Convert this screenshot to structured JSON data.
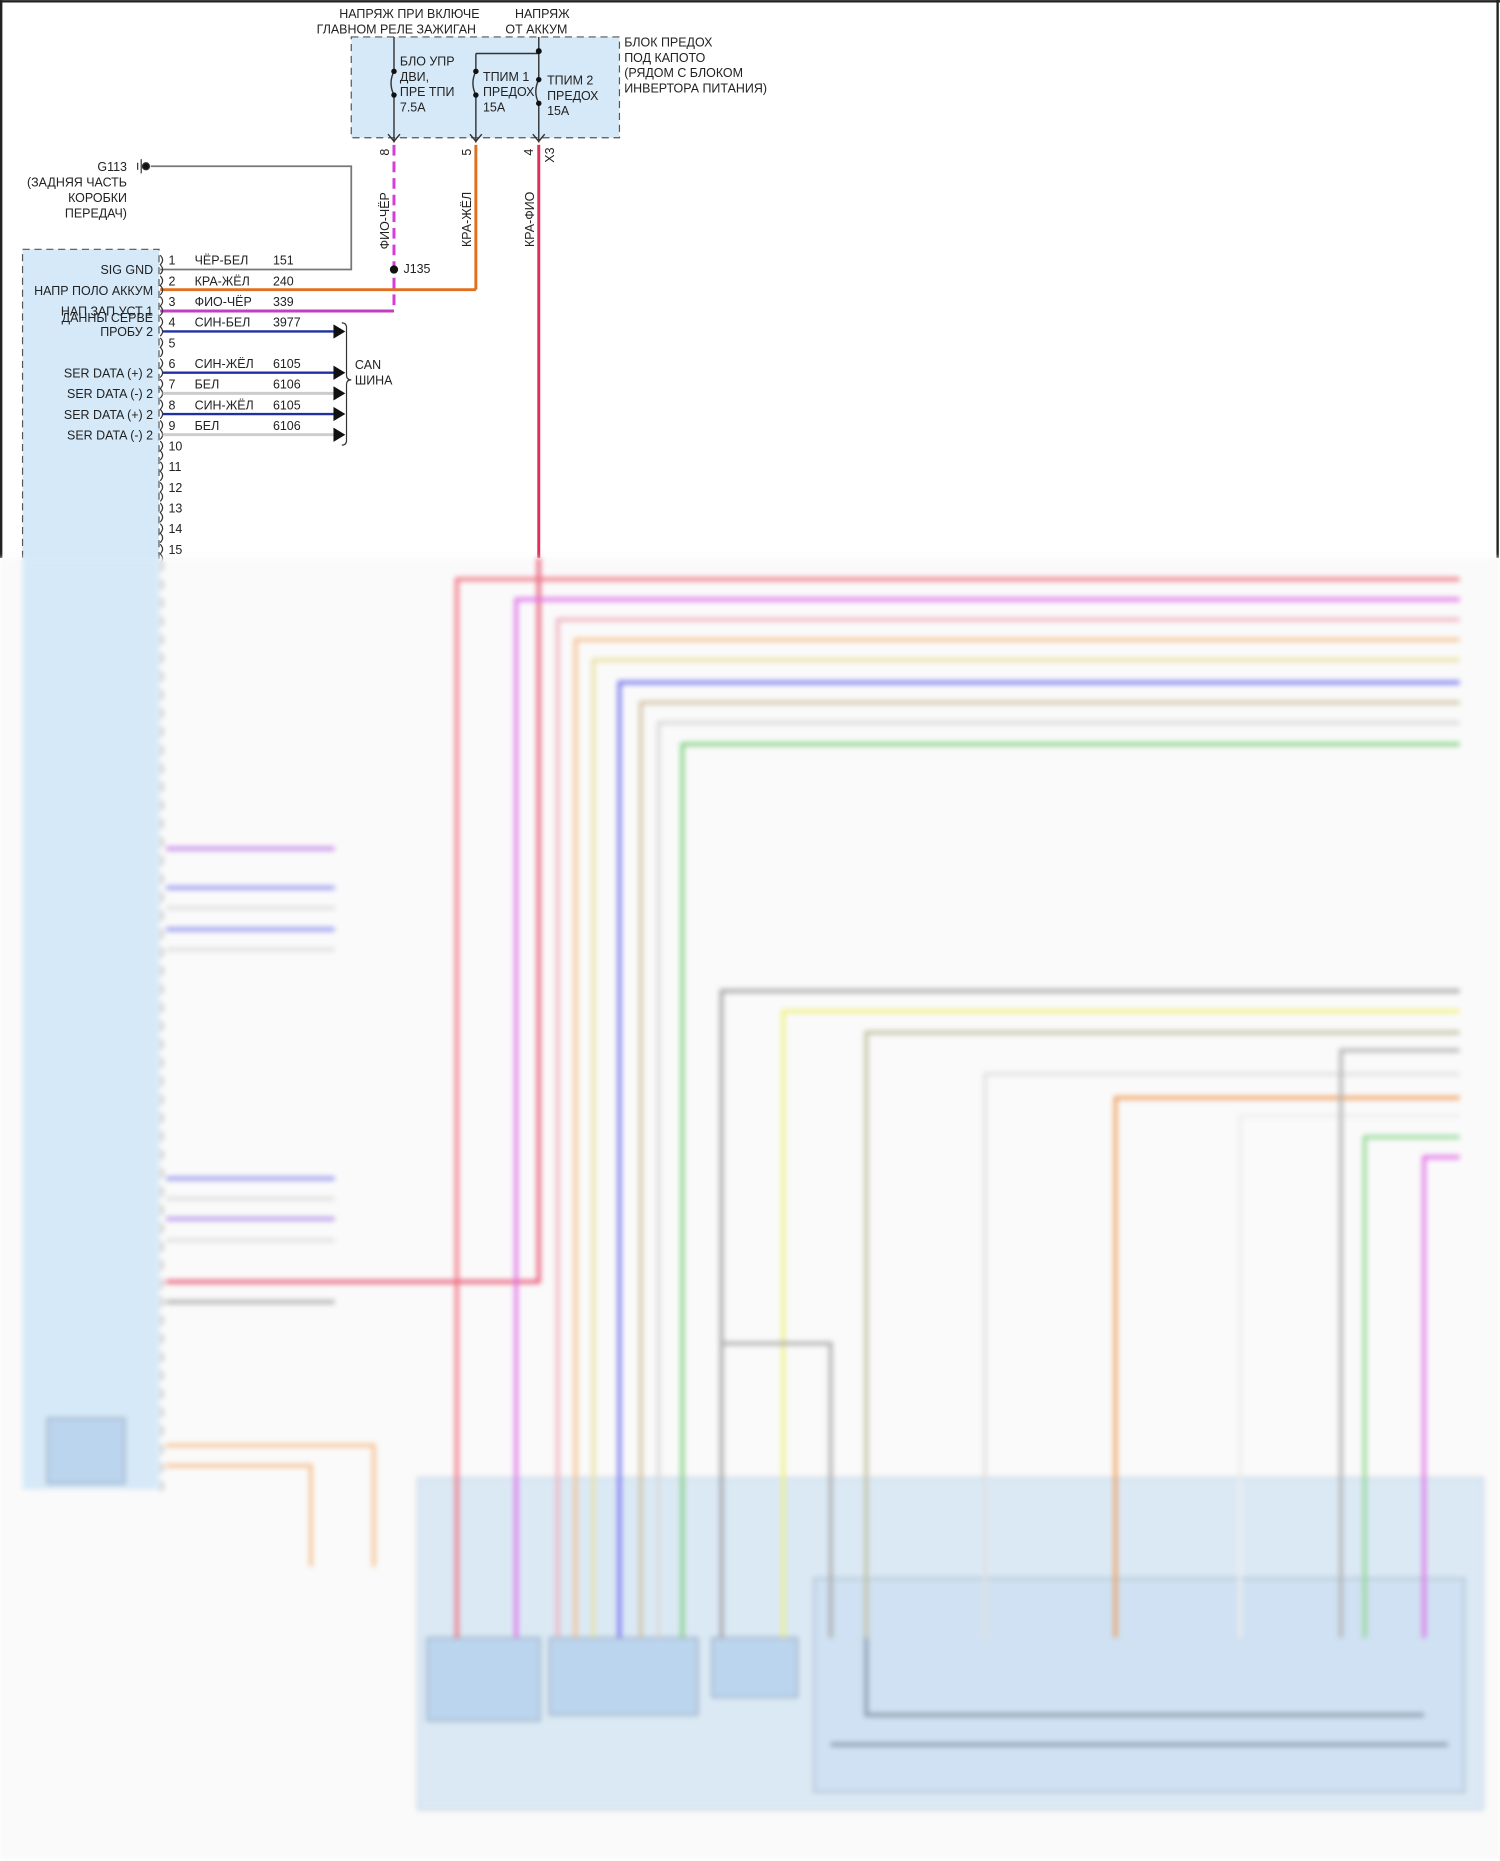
{
  "header_labels": {
    "ign_line1": "НАПРЯЖ ПРИ ВКЛЮЧЕ",
    "ign_line2": "ГЛАВНОМ РЕЛЕ ЗАЖИГАН",
    "bat_line1": "НАПРЯЖ",
    "bat_line2": "ОТ АККУМ"
  },
  "fuse_block": {
    "label": [
      "БЛОК ПРЕДОХ",
      "ПОД КАПОТО",
      "(РЯДОМ С БЛОКОМ",
      "ИНВЕРТОРА ПИТАНИЯ)"
    ],
    "fuses": [
      {
        "lines": [
          "БЛО УПР",
          "ДВИ,",
          "ПРЕ ТПИ",
          "7.5A"
        ],
        "pin": "8"
      },
      {
        "lines": [
          "ТПИМ 1",
          "ПРЕДОХ",
          "15A"
        ],
        "pin": "5"
      },
      {
        "lines": [
          "ТПИМ 2",
          "ПРЕДОХ",
          "15A"
        ],
        "pin": "4"
      }
    ],
    "connector": "X3"
  },
  "wires_vertical": [
    {
      "label": "ФИО-ЧЁР",
      "color": "#d63cd6"
    },
    {
      "label": "КРА-ЖЁЛ",
      "color": "#e07020"
    },
    {
      "label": "КРА-ФИО",
      "color": "#e0305a"
    }
  ],
  "splice": "J135",
  "ground": {
    "id": "G113",
    "desc": [
      "(ЗАДНЯЯ ЧАСТЬ",
      "КОРОБКИ",
      "ПЕРЕДАЧ)"
    ]
  },
  "can_bus": [
    "CAN",
    "ШИНА"
  ],
  "module_pins": [
    {
      "pin": "1",
      "signal": [
        "SIG GND"
      ],
      "wire": "ЧЁР-БЕЛ",
      "circuit": "151",
      "color": "#777777"
    },
    {
      "pin": "2",
      "signal": [
        "НАПР ПОЛО АККУМ"
      ],
      "wire": "КРА-ЖЁЛ",
      "circuit": "240",
      "color": "#e07020"
    },
    {
      "pin": "3",
      "signal": [
        "НАП ЗАП УСТ 1"
      ],
      "wire": "ФИО-ЧЁР",
      "circuit": "339",
      "color": "#c040c0"
    },
    {
      "pin": "4",
      "signal": [
        "ДАННЫ СЕРВЕ",
        "ПРОБУ 2"
      ],
      "wire": "СИН-БЕЛ",
      "circuit": "3977",
      "color": "#2030a0"
    },
    {
      "pin": "5",
      "signal": [],
      "wire": "",
      "circuit": "",
      "color": ""
    },
    {
      "pin": "6",
      "signal": [
        "SER DATA (+) 2"
      ],
      "wire": "СИН-ЖЁЛ",
      "circuit": "6105",
      "color": "#2030a0"
    },
    {
      "pin": "7",
      "signal": [
        "SER DATA (-) 2"
      ],
      "wire": "БЕЛ",
      "circuit": "6106",
      "color": "#cccccc"
    },
    {
      "pin": "8",
      "signal": [
        "SER DATA (+) 2"
      ],
      "wire": "СИН-ЖЁЛ",
      "circuit": "6105",
      "color": "#2030a0"
    },
    {
      "pin": "9",
      "signal": [
        "SER DATA (-) 2"
      ],
      "wire": "БЕЛ",
      "circuit": "6106",
      "color": "#cccccc"
    },
    {
      "pin": "10",
      "signal": [],
      "wire": "",
      "circuit": "",
      "color": ""
    },
    {
      "pin": "11",
      "signal": [],
      "wire": "",
      "circuit": "",
      "color": ""
    },
    {
      "pin": "12",
      "signal": [],
      "wire": "",
      "circuit": "",
      "color": ""
    },
    {
      "pin": "13",
      "signal": [],
      "wire": "",
      "circuit": "",
      "color": ""
    },
    {
      "pin": "14",
      "signal": [],
      "wire": "",
      "circuit": "",
      "color": ""
    },
    {
      "pin": "15",
      "signal": [],
      "wire": "",
      "circuit": "",
      "color": ""
    }
  ],
  "colors": {
    "block_fill": "#d6e9f8",
    "blurred_region_fill": "#dbe9f5"
  }
}
